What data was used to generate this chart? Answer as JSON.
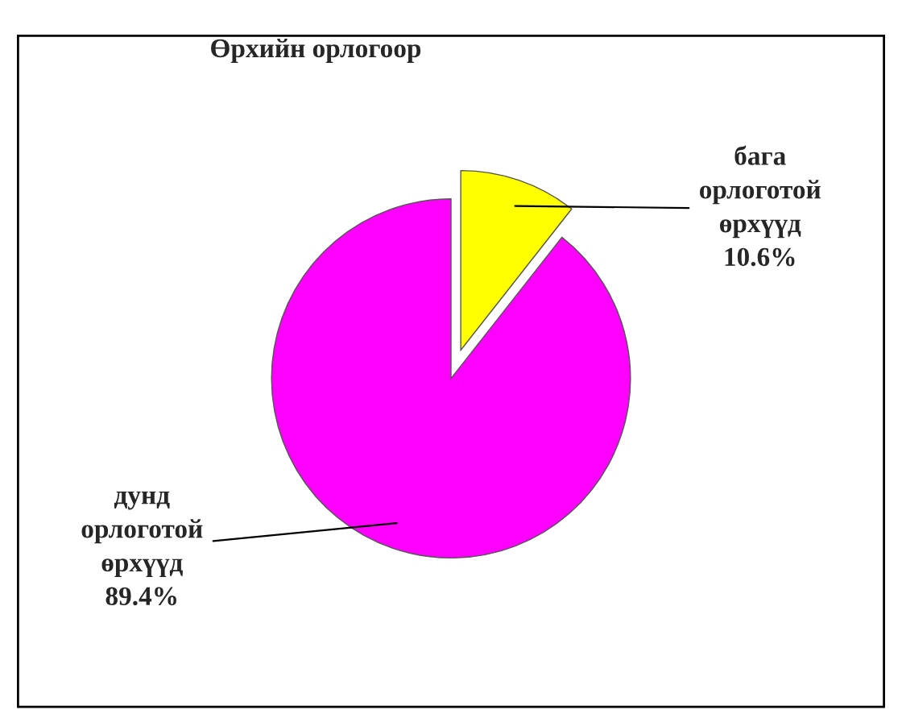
{
  "chart_data": {
    "type": "pie",
    "title": "Өрхийн орлогоор",
    "categories": [
      "бага\nорлоготой\nөрхүүд",
      "дунд\nорлоготой\nөрхүүд"
    ],
    "values": [
      10.6,
      89.4
    ],
    "colors": [
      "#ffff00",
      "#ff00ff"
    ],
    "value_labels": [
      "10.6%",
      "89.4%"
    ],
    "legend": false
  }
}
